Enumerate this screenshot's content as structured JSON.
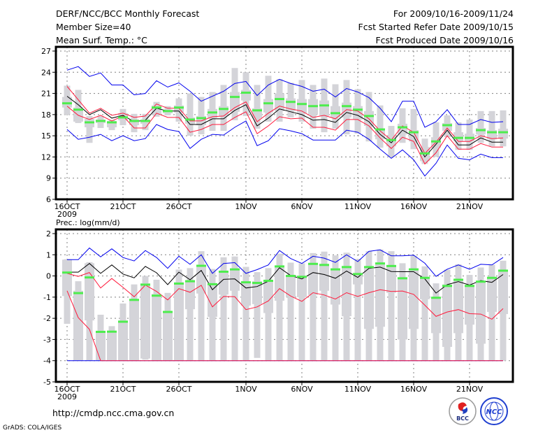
{
  "header": {
    "title": "DERF/NCC/BCC Monthly Forecast",
    "member_size": "Member Size=40",
    "variable": "Mean Surf. Temp.: °C",
    "period": "For 2009/10/16-2009/11/24",
    "started": "Fcst Started Refer Date 2009/10/15",
    "produced": "Fcst Produced Date 2009/10/16"
  },
  "footer": {
    "url": "http://cmdp.ncc.cma.gov.cn",
    "credit": "GrADS: COLA/IGES",
    "logo_bcc": "BCC",
    "logo_ncc": "NCC"
  },
  "colors": {
    "box": "#d4d4d9",
    "median": "#4ded4d",
    "mean": "#000000",
    "inner": "#ff1a3c",
    "outer": "#0000ee",
    "grid": "#808080"
  },
  "chart_data": [
    {
      "type": "line",
      "title": "Mean Surf. Temp.: °C",
      "xlabel": "",
      "ylabel": "°C",
      "ylim": [
        6,
        27
      ],
      "yticks": [
        6,
        9,
        12,
        15,
        18,
        21,
        24,
        27
      ],
      "x_tick_labels": [
        {
          "day": 0,
          "label": "16OCT"
        },
        {
          "day": 5,
          "label": "21OCT"
        },
        {
          "day": 10,
          "label": "26OCT"
        },
        {
          "day": 16,
          "label": "1NOV"
        },
        {
          "day": 21,
          "label": "6NOV"
        },
        {
          "day": 26,
          "label": "11NOV"
        },
        {
          "day": 31,
          "label": "16NOV"
        },
        {
          "day": 36,
          "label": "21NOV"
        }
      ],
      "year_label": "2009",
      "grid": true,
      "days": 40,
      "series": [
        {
          "name": "mean",
          "color": "#000000",
          "values": [
            20.6,
            19.4,
            18.0,
            18.7,
            17.5,
            17.9,
            17.0,
            17.2,
            18.9,
            18.5,
            18.5,
            16.6,
            16.6,
            17.4,
            17.4,
            18.6,
            19.4,
            16.4,
            17.5,
            18.8,
            18.4,
            18.0,
            17.2,
            17.3,
            16.9,
            18.3,
            17.9,
            17.0,
            15.2,
            14.0,
            15.8,
            14.9,
            12.0,
            13.8,
            15.8,
            13.7,
            13.7,
            14.7,
            14.1,
            14.1
          ]
        },
        {
          "name": "inner-upper",
          "color": "#ff1a3c",
          "values": [
            22.0,
            20.1,
            18.2,
            18.9,
            17.9,
            18.2,
            17.6,
            17.8,
            19.5,
            18.9,
            18.9,
            17.1,
            17.1,
            17.7,
            17.8,
            19.0,
            19.8,
            17.0,
            18.2,
            19.2,
            18.8,
            18.5,
            17.6,
            17.9,
            17.4,
            18.7,
            18.5,
            17.4,
            15.7,
            14.4,
            16.4,
            15.5,
            12.5,
            14.1,
            16.1,
            14.2,
            14.2,
            15.0,
            14.6,
            14.7
          ]
        },
        {
          "name": "inner-lower",
          "color": "#ff1a3c",
          "values": [
            19.2,
            17.9,
            17.3,
            17.9,
            17.1,
            17.8,
            16.1,
            16.1,
            18.2,
            17.6,
            17.6,
            15.5,
            15.9,
            16.6,
            16.6,
            17.6,
            18.4,
            15.3,
            16.4,
            17.7,
            17.4,
            17.5,
            16.2,
            16.2,
            15.8,
            17.3,
            17.3,
            16.4,
            14.7,
            13.2,
            14.8,
            14.2,
            11.0,
            12.6,
            15.0,
            13.1,
            13.1,
            13.9,
            13.4,
            13.4
          ]
        },
        {
          "name": "outer-upper",
          "color": "#0000ee",
          "values": [
            24.3,
            24.8,
            23.4,
            23.9,
            22.2,
            22.2,
            20.8,
            21.0,
            22.8,
            21.9,
            22.5,
            21.3,
            19.9,
            20.6,
            21.3,
            22.4,
            22.7,
            20.7,
            22.2,
            23.0,
            22.4,
            22.0,
            21.3,
            21.6,
            20.5,
            21.7,
            21.2,
            20.4,
            18.9,
            17.0,
            19.9,
            19.9,
            16.2,
            17.0,
            18.7,
            16.6,
            16.6,
            17.3,
            16.9,
            17.0
          ]
        },
        {
          "name": "outer-lower",
          "color": "#0000ee",
          "values": [
            15.9,
            14.5,
            14.8,
            15.2,
            14.3,
            15.0,
            14.3,
            14.6,
            16.6,
            15.9,
            15.6,
            13.2,
            14.5,
            15.2,
            15.1,
            16.2,
            17.1,
            13.6,
            14.3,
            16.0,
            15.7,
            15.3,
            14.4,
            14.4,
            14.4,
            15.8,
            15.5,
            14.5,
            13.1,
            11.8,
            13.0,
            11.6,
            9.3,
            11.1,
            13.7,
            11.8,
            11.6,
            12.4,
            11.9,
            11.9
          ]
        }
      ],
      "boxes": {
        "median": [
          19.6,
          18.7,
          16.9,
          17.1,
          16.9,
          17.6,
          17.1,
          17.1,
          19.0,
          18.5,
          19.0,
          17.3,
          17.5,
          18.3,
          18.8,
          20.5,
          21.1,
          18.6,
          19.6,
          20.2,
          19.8,
          19.5,
          19.2,
          19.3,
          18.2,
          19.2,
          18.7,
          17.8,
          15.9,
          14.4,
          16.2,
          15.5,
          12.5,
          14.2,
          16.5,
          14.7,
          14.7,
          15.8,
          15.5,
          15.5
        ],
        "max": [
          22.1,
          21.5,
          17.8,
          17.8,
          17.2,
          18.8,
          18.1,
          18.1,
          19.8,
          19.2,
          20.3,
          21.0,
          20.5,
          21.2,
          22.2,
          24.6,
          24.0,
          22.2,
          23.5,
          23.0,
          22.5,
          22.9,
          22.2,
          23.1,
          22.3,
          22.9,
          21.6,
          21.2,
          19.3,
          16.4,
          18.9,
          18.8,
          14.6,
          16.9,
          17.9,
          16.9,
          17.3,
          18.5,
          18.5,
          18.6
        ],
        "q3": [
          20.5,
          19.0,
          17.4,
          17.3,
          17.1,
          18.2,
          17.3,
          17.3,
          19.3,
          18.7,
          19.3,
          17.6,
          17.8,
          18.8,
          19.2,
          21.2,
          21.5,
          18.9,
          20.2,
          21.0,
          20.3,
          20.2,
          20.2,
          20.0,
          19.2,
          19.7,
          19.2,
          18.5,
          16.0,
          14.9,
          16.7,
          15.8,
          13.4,
          14.8,
          16.8,
          15.5,
          15.3,
          16.1,
          15.8,
          16.0
        ],
        "q1": [
          19.0,
          17.0,
          16.2,
          16.8,
          16.2,
          17.2,
          16.5,
          16.7,
          18.0,
          18.2,
          18.3,
          16.7,
          16.5,
          17.5,
          17.8,
          18.4,
          20.0,
          17.5,
          18.3,
          18.5,
          18.5,
          18.2,
          18.0,
          17.8,
          17.6,
          17.6,
          17.3,
          16.4,
          14.5,
          13.5,
          15.2,
          14.2,
          11.4,
          13.3,
          15.7,
          14.2,
          14.2,
          15.2,
          14.5,
          14.6
        ],
        "min": [
          18.0,
          16.8,
          14.0,
          16.1,
          15.8,
          16.5,
          15.5,
          15.8,
          17.7,
          17.9,
          17.0,
          15.0,
          15.2,
          15.7,
          15.7,
          17.2,
          17.8,
          16.0,
          17.0,
          17.0,
          17.6,
          17.0,
          16.0,
          15.5,
          16.0,
          15.2,
          15.3,
          14.2,
          13.3,
          12.0,
          14.0,
          13.1,
          11.0,
          12.0,
          14.8,
          13.0,
          13.0,
          14.0,
          13.5,
          13.5
        ]
      }
    },
    {
      "type": "line",
      "title": "Prec.: log(mm/d)",
      "xlabel": "",
      "ylabel": "log(mm/d)",
      "ylim": [
        -5,
        2
      ],
      "yticks": [
        -5,
        -4,
        -3,
        -2,
        -1,
        0,
        1,
        2
      ],
      "x_tick_labels": [
        {
          "day": 0,
          "label": "16OCT"
        },
        {
          "day": 5,
          "label": "21OCT"
        },
        {
          "day": 10,
          "label": "26OCT"
        },
        {
          "day": 16,
          "label": "1NOV"
        },
        {
          "day": 21,
          "label": "6NOV"
        },
        {
          "day": 26,
          "label": "11NOV"
        },
        {
          "day": 31,
          "label": "16NOV"
        },
        {
          "day": 36,
          "label": "21NOV"
        }
      ],
      "year_label": "2009",
      "grid": true,
      "days": 40,
      "series": [
        {
          "name": "mean",
          "color": "#000000",
          "values": [
            0.18,
            0.18,
            0.59,
            0.12,
            0.52,
            0.09,
            -0.09,
            0.45,
            0.15,
            -0.41,
            0.18,
            -0.18,
            0.26,
            -0.65,
            -0.16,
            -0.14,
            -0.57,
            -0.5,
            -0.25,
            0.39,
            0.02,
            -0.14,
            0.16,
            0.07,
            -0.11,
            0.23,
            -0.07,
            0.36,
            0.42,
            0.21,
            0.2,
            0.2,
            -0.14,
            -0.81,
            -0.41,
            -0.27,
            -0.43,
            -0.22,
            -0.3,
            0.07
          ]
        },
        {
          "name": "inner-upper",
          "color": "#ff1a3c",
          "values": [
            0.12,
            -0.02,
            0.16,
            -0.57,
            -0.12,
            -0.54,
            -0.98,
            -0.43,
            -0.73,
            -1.13,
            -0.6,
            -0.77,
            -0.44,
            -1.46,
            -0.97,
            -0.98,
            -1.59,
            -1.46,
            -1.18,
            -0.6,
            -0.95,
            -1.2,
            -0.79,
            -0.9,
            -1.09,
            -0.79,
            -0.97,
            -0.79,
            -0.65,
            -0.73,
            -0.71,
            -0.87,
            -1.38,
            -1.91,
            -1.7,
            -1.59,
            -1.78,
            -1.8,
            -2.04,
            -1.54
          ]
        },
        {
          "name": "inner-lower",
          "color": "#ff1a3c",
          "values": [
            -0.7,
            -1.97,
            -2.52,
            -4,
            -4,
            -4,
            -4,
            -4,
            -4,
            -4,
            -4,
            -4,
            -4,
            -4,
            -4,
            -4,
            -4,
            -4,
            -4,
            -4,
            -4,
            -4,
            -4,
            -4,
            -4,
            -4,
            -4,
            -4,
            -4,
            -4,
            -4,
            -4,
            -4,
            -4,
            -4,
            -4,
            -4,
            -4,
            -4,
            -4
          ]
        },
        {
          "name": "outer-upper",
          "color": "#0000ee",
          "values": [
            0.77,
            0.77,
            1.32,
            0.9,
            1.28,
            0.87,
            0.71,
            1.2,
            0.87,
            0.36,
            0.93,
            0.55,
            1.0,
            0.12,
            0.59,
            0.63,
            0.12,
            0.3,
            0.52,
            1.2,
            0.82,
            0.59,
            0.93,
            0.84,
            0.64,
            1.0,
            0.68,
            1.16,
            1.23,
            0.95,
            0.95,
            0.98,
            0.6,
            -0.02,
            0.32,
            0.52,
            0.32,
            0.55,
            0.52,
            0.87
          ]
        },
        {
          "name": "outer-lower",
          "color": "#0000ee",
          "values": [
            -4,
            -4,
            -4,
            -4,
            -4,
            -4,
            -4,
            -4,
            -4,
            -4,
            -4,
            -4,
            -4,
            -4,
            -4,
            -4,
            -4,
            -4,
            -4,
            -4,
            -4,
            -4,
            -4,
            -4,
            -4,
            -4,
            -4,
            -4,
            -4,
            -4,
            -4,
            -4,
            -4,
            -4,
            -4,
            -4,
            -4,
            -4,
            -4,
            -4
          ]
        }
      ],
      "boxes": {
        "median": [
          0.16,
          -0.81,
          -0.07,
          -2.64,
          -2.63,
          -2.16,
          -1.13,
          -0.41,
          -0.93,
          -1.7,
          -0.36,
          -0.25,
          0.48,
          -0.39,
          0.2,
          0.31,
          -0.3,
          -0.33,
          -0.23,
          0.45,
          0.0,
          -0.04,
          0.57,
          0.52,
          0.31,
          0.42,
          0.09,
          0.42,
          0.59,
          0.47,
          -0.11,
          0.31,
          -0.09,
          -1.03,
          -0.47,
          -0.18,
          -0.47,
          -0.27,
          -0.09,
          0.25
        ],
        "max": [
          0.79,
          -0.25,
          0.65,
          -1.83,
          -2.37,
          -1.3,
          -0.4,
          0.0,
          -0.18,
          -0.8,
          0.3,
          0.37,
          1.17,
          0.33,
          0.88,
          0.92,
          0.43,
          0.18,
          0.37,
          1.05,
          0.63,
          0.6,
          1.08,
          1.15,
          0.97,
          1.1,
          0.8,
          1.17,
          1.25,
          1.17,
          0.6,
          0.95,
          0.45,
          -0.35,
          0.3,
          0.55,
          0.05,
          0.4,
          0.53,
          0.72
        ],
        "q3": [
          0.77,
          -0.7,
          0.6,
          -2.6,
          -2.6,
          -2.1,
          -1.1,
          -0.35,
          -0.85,
          -1.65,
          -0.3,
          -0.2,
          0.5,
          -0.35,
          0.22,
          0.35,
          -0.3,
          -0.25,
          -0.2,
          0.48,
          0.05,
          0.0,
          0.6,
          0.55,
          0.35,
          0.45,
          0.1,
          0.45,
          0.6,
          0.45,
          -0.1,
          0.35,
          -0.1,
          -1.0,
          -0.4,
          -0.2,
          -0.45,
          -0.3,
          -0.1,
          0.3
        ],
        "q1": [
          -0.95,
          -4,
          -2.1,
          -4,
          -4,
          -4,
          -4,
          -3.9,
          -4,
          -4,
          -4,
          -1.57,
          -0.83,
          -1.93,
          -0.88,
          -0.7,
          -1.4,
          -1.33,
          -1.75,
          -1.17,
          -1.0,
          -1.0,
          -0.9,
          -0.7,
          -1.35,
          -1.9,
          -0.4,
          -2.5,
          -2.4,
          -0.8,
          -3.0,
          -2.5,
          -1.1,
          -2.7,
          -3.35,
          -2.7,
          -2.3,
          -3.2,
          -1.7,
          -1.8
        ],
        "min": [
          -2.26,
          -4,
          -4,
          -4,
          -4,
          -4,
          -4,
          -3.95,
          -4,
          -4,
          -4,
          -4,
          -4,
          -4,
          -4,
          -4,
          -4,
          -3.87,
          -4,
          -4,
          -4,
          -4,
          -4,
          -4,
          -4,
          -4,
          -4,
          -4,
          -4,
          -4,
          -4,
          -4,
          -4,
          -4,
          -4,
          -4,
          -4,
          -4,
          -4,
          -4
        ]
      }
    }
  ]
}
